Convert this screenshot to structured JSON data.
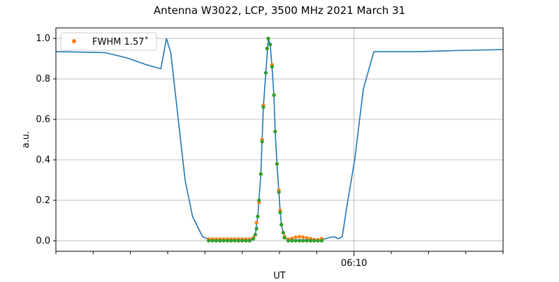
{
  "chart_data": {
    "type": "line",
    "title": "Antenna W3022, LCP, 3500 MHz 2021 March 31",
    "xlabel": "UT",
    "ylabel": "a.u.",
    "xlim": [
      "06:02:00",
      "06:14:00"
    ],
    "ylim": [
      -0.052,
      1.052
    ],
    "x_major_ticks": [
      {
        "t": "06:10:00",
        "label": "06:10"
      }
    ],
    "x_minor_ticks": [
      "06:02:00",
      "06:03:00",
      "06:04:00",
      "06:05:00",
      "06:06:00",
      "06:07:00",
      "06:08:00",
      "06:09:00",
      "06:11:00",
      "06:12:00",
      "06:13:00",
      "06:14:00"
    ],
    "y_ticks": [
      "0.0",
      "0.2",
      "0.4",
      "0.6",
      "0.8",
      "1.0"
    ],
    "grid": "major ticks",
    "legend_placement": "upper-left",
    "colors": {
      "line": "#1f77b4",
      "orange": "#ff7f0e",
      "green": "#2ca02c",
      "grid": "#b0b0b0"
    },
    "line_series": {
      "points": [
        [
          "06:02:00",
          0.935
        ],
        [
          "06:03:19",
          0.93
        ],
        [
          "06:03:53",
          0.905
        ],
        [
          "06:04:26",
          0.87
        ],
        [
          "06:04:49",
          0.85
        ],
        [
          "06:04:58",
          1.0
        ],
        [
          "06:05:05",
          0.93
        ],
        [
          "06:05:17",
          0.6
        ],
        [
          "06:05:28",
          0.3
        ],
        [
          "06:05:40",
          0.12
        ],
        [
          "06:05:56",
          0.02
        ],
        [
          "06:06:08",
          0.005
        ],
        [
          "06:07:15",
          0.005
        ],
        [
          "06:07:21",
          0.03
        ],
        [
          "06:07:25",
          0.12
        ],
        [
          "06:07:30",
          0.33
        ],
        [
          "06:07:34",
          0.66
        ],
        [
          "06:07:38",
          0.83
        ],
        [
          "06:07:42",
          1.0
        ],
        [
          "06:07:45",
          0.97
        ],
        [
          "06:07:48",
          0.86
        ],
        [
          "06:07:51",
          0.72
        ],
        [
          "06:07:53",
          0.54
        ],
        [
          "06:07:56",
          0.38
        ],
        [
          "06:07:59",
          0.24
        ],
        [
          "06:08:01",
          0.15
        ],
        [
          "06:08:03",
          0.08
        ],
        [
          "06:08:06",
          0.04
        ],
        [
          "06:08:11",
          0.01
        ],
        [
          "06:08:23",
          0.005
        ],
        [
          "06:09:08",
          0.005
        ],
        [
          "06:09:19",
          0.015
        ],
        [
          "06:09:28",
          0.02
        ],
        [
          "06:09:35",
          0.01
        ],
        [
          "06:09:41",
          0.02
        ],
        [
          "06:09:50",
          0.2
        ],
        [
          "06:10:01",
          0.4
        ],
        [
          "06:10:15",
          0.75
        ],
        [
          "06:10:32",
          0.935
        ],
        [
          "06:11:45",
          0.935
        ],
        [
          "06:12:41",
          0.94
        ],
        [
          "06:14:00",
          0.945
        ]
      ]
    },
    "scatter_series": [
      {
        "name": "FWHM 1.57$^\\circ$",
        "label": "FWHM 1.57˚",
        "color": "#ff7f0e",
        "points": [
          [
            "06:06:06",
            0.008
          ],
          [
            "06:06:12",
            0.008
          ],
          [
            "06:06:18",
            0.008
          ],
          [
            "06:06:24",
            0.008
          ],
          [
            "06:06:30",
            0.008
          ],
          [
            "06:06:36",
            0.008
          ],
          [
            "06:06:42",
            0.008
          ],
          [
            "06:06:48",
            0.008
          ],
          [
            "06:06:54",
            0.008
          ],
          [
            "06:07:00",
            0.008
          ],
          [
            "06:07:06",
            0.008
          ],
          [
            "06:07:12",
            0.008
          ],
          [
            "06:07:18",
            0.015
          ],
          [
            "06:07:21",
            0.03
          ],
          [
            "06:07:23",
            0.09
          ],
          [
            "06:07:25",
            0.12
          ],
          [
            "06:07:27",
            0.19
          ],
          [
            "06:07:30",
            0.33
          ],
          [
            "06:07:32",
            0.5
          ],
          [
            "06:07:34",
            0.67
          ],
          [
            "06:07:38",
            0.83
          ],
          [
            "06:07:40",
            0.95
          ],
          [
            "06:07:42",
            1.0
          ],
          [
            "06:07:45",
            0.97
          ],
          [
            "06:07:48",
            0.87
          ],
          [
            "06:07:51",
            0.72
          ],
          [
            "06:07:53",
            0.54
          ],
          [
            "06:07:56",
            0.38
          ],
          [
            "06:07:59",
            0.25
          ],
          [
            "06:08:01",
            0.15
          ],
          [
            "06:08:03",
            0.08
          ],
          [
            "06:08:06",
            0.04
          ],
          [
            "06:08:08",
            0.02
          ],
          [
            "06:08:14",
            0.008
          ],
          [
            "06:08:20",
            0.012
          ],
          [
            "06:08:26",
            0.018
          ],
          [
            "06:08:32",
            0.02
          ],
          [
            "06:08:38",
            0.018
          ],
          [
            "06:08:44",
            0.014
          ],
          [
            "06:08:50",
            0.01
          ],
          [
            "06:08:56",
            0.006
          ],
          [
            "06:09:02",
            0.005
          ],
          [
            "06:09:08",
            0.01
          ]
        ]
      },
      {
        "color": "#2ca02c",
        "points": [
          [
            "06:06:06",
            0.0
          ],
          [
            "06:06:12",
            0.0
          ],
          [
            "06:06:18",
            0.0
          ],
          [
            "06:06:24",
            0.0
          ],
          [
            "06:06:30",
            0.0
          ],
          [
            "06:06:36",
            0.0
          ],
          [
            "06:06:42",
            0.0
          ],
          [
            "06:06:48",
            0.0
          ],
          [
            "06:06:54",
            0.0
          ],
          [
            "06:07:00",
            0.0
          ],
          [
            "06:07:06",
            0.0
          ],
          [
            "06:07:12",
            0.0
          ],
          [
            "06:07:18",
            0.01
          ],
          [
            "06:07:21",
            0.03
          ],
          [
            "06:07:23",
            0.06
          ],
          [
            "06:07:25",
            0.12
          ],
          [
            "06:07:27",
            0.2
          ],
          [
            "06:07:30",
            0.33
          ],
          [
            "06:07:32",
            0.49
          ],
          [
            "06:07:34",
            0.66
          ],
          [
            "06:07:38",
            0.83
          ],
          [
            "06:07:40",
            0.95
          ],
          [
            "06:07:42",
            1.0
          ],
          [
            "06:07:45",
            0.97
          ],
          [
            "06:07:48",
            0.86
          ],
          [
            "06:07:51",
            0.72
          ],
          [
            "06:07:53",
            0.54
          ],
          [
            "06:07:56",
            0.38
          ],
          [
            "06:07:59",
            0.24
          ],
          [
            "06:08:01",
            0.14
          ],
          [
            "06:08:03",
            0.08
          ],
          [
            "06:08:06",
            0.04
          ],
          [
            "06:08:08",
            0.015
          ],
          [
            "06:08:14",
            0.0
          ],
          [
            "06:08:20",
            0.0
          ],
          [
            "06:08:26",
            0.0
          ],
          [
            "06:08:32",
            0.0
          ],
          [
            "06:08:38",
            0.0
          ],
          [
            "06:08:44",
            0.0
          ],
          [
            "06:08:50",
            0.0
          ],
          [
            "06:08:56",
            0.0
          ],
          [
            "06:09:02",
            0.0
          ],
          [
            "06:09:08",
            0.0
          ]
        ]
      }
    ]
  }
}
